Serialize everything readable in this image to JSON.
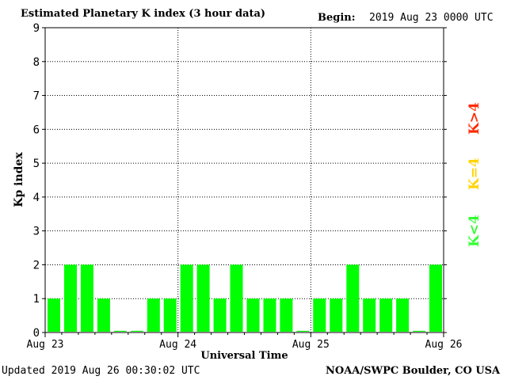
{
  "header": {
    "title": "Estimated Planetary K index (3 hour data)",
    "begin_label": "Begin:",
    "begin_value": "2019 Aug 23 0000 UTC"
  },
  "footer": {
    "updated": "Updated 2019 Aug 26 00:30:02 UTC",
    "credit": "NOAA/SWPC Boulder, CO USA"
  },
  "legend": {
    "high": "K>4",
    "equal": "K=4",
    "low": "K<4",
    "colors": {
      "high": "#ff2a00",
      "equal": "#ffd400",
      "low": "#33ff33"
    }
  },
  "chart_data": {
    "type": "bar",
    "title": "Estimated Planetary K index (3 hour data)",
    "xlabel": "Universal Time",
    "ylabel": "Kp index",
    "ylim": [
      0,
      9
    ],
    "yticks": [
      "0",
      "1",
      "2",
      "3",
      "4",
      "5",
      "6",
      "7",
      "8",
      "9"
    ],
    "day_labels": [
      "Aug 23",
      "Aug 24",
      "Aug 25",
      "Aug 26"
    ],
    "grid": true,
    "bar_color": "#00ff00",
    "values": [
      1,
      2,
      2,
      1,
      0.05,
      0.05,
      1,
      1,
      2,
      2,
      1,
      2,
      1,
      1,
      1,
      0.05,
      1,
      1,
      2,
      1,
      1,
      1,
      0.05,
      2
    ]
  }
}
